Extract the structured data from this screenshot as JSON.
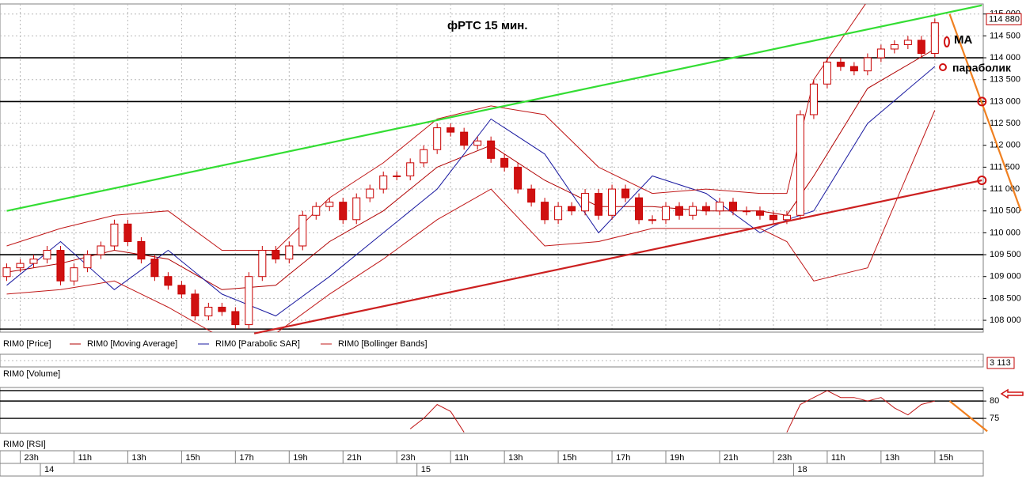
{
  "chart_data": [
    {
      "type": "candlestick",
      "title": "фРТС    15 мин.",
      "price_label": "RIM0 [Price]",
      "xlim": [
        -0.5,
        72.6
      ],
      "ylim": [
        107730,
        115230
      ],
      "yticks": [
        {
          "value": 108000,
          "label": "108 000"
        },
        {
          "value": 108500,
          "label": "108 500"
        },
        {
          "value": 109000,
          "label": "109 000"
        },
        {
          "value": 109500,
          "label": "109 500"
        },
        {
          "value": 110000,
          "label": "110 000"
        },
        {
          "value": 110500,
          "label": "110 500"
        },
        {
          "value": 111000,
          "label": "111 000"
        },
        {
          "value": 111500,
          "label": "111 500"
        },
        {
          "value": 112000,
          "label": "112 000"
        },
        {
          "value": 112500,
          "label": "112 500"
        },
        {
          "value": 113000,
          "label": "113 000"
        },
        {
          "value": 113500,
          "label": "113 500"
        },
        {
          "value": 114000,
          "label": "114 000"
        },
        {
          "value": 114500,
          "label": "114 500"
        },
        {
          "value": 115000,
          "label": "115 000"
        }
      ],
      "xticks": [
        {
          "value": 1,
          "label": "23h"
        },
        {
          "value": 5,
          "label": "11h"
        },
        {
          "value": 9,
          "label": "13h"
        },
        {
          "value": 13,
          "label": "15h"
        },
        {
          "value": 17,
          "label": "17h"
        },
        {
          "value": 21,
          "label": "19h"
        },
        {
          "value": 25,
          "label": "21h"
        },
        {
          "value": 29,
          "label": "23h"
        },
        {
          "value": 33,
          "label": "11h"
        },
        {
          "value": 37,
          "label": "13h"
        },
        {
          "value": 41,
          "label": "15h"
        },
        {
          "value": 45,
          "label": "17h"
        },
        {
          "value": 49,
          "label": "19h"
        },
        {
          "value": 53,
          "label": "21h"
        },
        {
          "value": 57,
          "label": "23h"
        },
        {
          "value": 61,
          "label": "11h"
        },
        {
          "value": 65,
          "label": "13h"
        },
        {
          "value": 69,
          "label": "15h"
        }
      ],
      "day_ticks": [
        {
          "value": 2.5,
          "label": "14"
        },
        {
          "value": 30.5,
          "label": "15"
        },
        {
          "value": 58.5,
          "label": "18"
        }
      ],
      "grid": true,
      "x": [
        0,
        1,
        2,
        3,
        4,
        5,
        6,
        7,
        8,
        9,
        10,
        11,
        12,
        13,
        14,
        15,
        16,
        17,
        18,
        19,
        20,
        21,
        22,
        23,
        24,
        25,
        26,
        27,
        28,
        29,
        30,
        31,
        32,
        33,
        34,
        35,
        36,
        37,
        38,
        39,
        40,
        41,
        42,
        43,
        44,
        45,
        46,
        47,
        48,
        49,
        50,
        51,
        52,
        53,
        54,
        55,
        56,
        57,
        58,
        59,
        60,
        61,
        62,
        63,
        64,
        65,
        66,
        67,
        68,
        69
      ],
      "open": [
        109000,
        109200,
        109300,
        109400,
        109600,
        108900,
        109200,
        109500,
        109700,
        110200,
        109800,
        109400,
        109000,
        108800,
        108600,
        108100,
        108300,
        108200,
        107900,
        109000,
        109600,
        109400,
        109700,
        110400,
        110600,
        110700,
        110300,
        110800,
        111000,
        111300,
        111300,
        111600,
        111900,
        112400,
        112300,
        112000,
        112100,
        111700,
        111500,
        111000,
        110700,
        110300,
        110600,
        110500,
        110900,
        110400,
        111000,
        110800,
        110300,
        110300,
        110600,
        110400,
        110600,
        110500,
        110700,
        110500,
        110500,
        110400,
        110300,
        110400,
        112700,
        113400,
        113900,
        113800,
        113700,
        114000,
        114200,
        114300,
        114400,
        114100
      ],
      "high": [
        109300,
        109400,
        109500,
        109700,
        109700,
        109300,
        109600,
        109800,
        110300,
        110300,
        109900,
        109500,
        109100,
        108900,
        108700,
        108400,
        108400,
        108300,
        109100,
        109700,
        109700,
        109800,
        110500,
        110700,
        110800,
        110800,
        110900,
        111100,
        111400,
        111400,
        111700,
        112000,
        112500,
        112500,
        112400,
        112200,
        112200,
        111800,
        111600,
        111100,
        110800,
        110700,
        110700,
        111000,
        111000,
        111100,
        111100,
        110900,
        110400,
        110700,
        110700,
        110700,
        110700,
        110800,
        110800,
        110600,
        110600,
        110500,
        110500,
        112800,
        113500,
        114000,
        114000,
        113900,
        114100,
        114300,
        114400,
        114500,
        114500,
        114900
      ],
      "low": [
        108900,
        109100,
        109200,
        109300,
        108800,
        108800,
        109100,
        109400,
        109600,
        109700,
        109300,
        108900,
        108700,
        108500,
        108000,
        108000,
        108100,
        107800,
        107800,
        108900,
        109300,
        109300,
        109600,
        110300,
        110500,
        110200,
        110200,
        110700,
        110900,
        111200,
        111200,
        111500,
        111800,
        112200,
        111900,
        111900,
        111600,
        111400,
        110900,
        110600,
        110200,
        110200,
        110400,
        110400,
        110300,
        110300,
        110700,
        110200,
        110200,
        110200,
        110300,
        110300,
        110400,
        110400,
        110400,
        110400,
        110300,
        110200,
        110200,
        110300,
        112600,
        113300,
        113700,
        113600,
        113600,
        113900,
        114100,
        114200,
        114000,
        114000
      ],
      "close": [
        109200,
        109300,
        109400,
        109600,
        108900,
        109200,
        109500,
        109700,
        110200,
        109800,
        109400,
        109000,
        108800,
        108600,
        108100,
        108300,
        108200,
        107900,
        109000,
        109600,
        109400,
        109700,
        110400,
        110600,
        110700,
        110300,
        110800,
        111000,
        111300,
        111300,
        111600,
        111900,
        112400,
        112300,
        112000,
        112100,
        111700,
        111500,
        111000,
        110700,
        110300,
        110600,
        110500,
        110900,
        110400,
        111000,
        110800,
        110300,
        110300,
        110600,
        110400,
        110600,
        110500,
        110700,
        110500,
        110500,
        110400,
        110300,
        110400,
        112700,
        113400,
        113900,
        113800,
        113700,
        114000,
        114200,
        114300,
        114400,
        114100,
        114800
      ],
      "color": "#c80000",
      "up_color": "#ffffff",
      "down_color": "#d01010",
      "last_price": {
        "value": 114880,
        "label": "114 880"
      },
      "series": [
        {
          "name": "RIM0 [Moving Average]",
          "color": "#b00000",
          "x": [
            0,
            4,
            8,
            12,
            16,
            20,
            24,
            28,
            32,
            36,
            40,
            44,
            48,
            52,
            56,
            58,
            60,
            64,
            69
          ],
          "values": [
            109100,
            109300,
            109600,
            109400,
            108700,
            108800,
            109800,
            110500,
            111500,
            112000,
            111200,
            110600,
            110600,
            110500,
            110500,
            110400,
            111300,
            113300,
            114200
          ]
        },
        {
          "name": "RIM0 [Parabolic SAR]",
          "color": "#1a1aa0",
          "x": [
            0,
            4,
            8,
            12,
            16,
            20,
            24,
            28,
            32,
            36,
            40,
            44,
            48,
            52,
            56,
            58,
            60,
            64,
            69
          ],
          "values": [
            108800,
            109800,
            108700,
            109600,
            108600,
            108100,
            109000,
            110000,
            111000,
            112600,
            111800,
            110000,
            111300,
            110900,
            110000,
            110300,
            110500,
            112500,
            113800
          ]
        },
        {
          "name": "RIM0 [Bollinger Bands]",
          "color": "#c01818",
          "x": [
            0,
            4,
            8,
            12,
            16,
            20,
            24,
            28,
            32,
            36,
            40,
            44,
            48,
            52,
            56,
            58,
            60,
            64,
            69
          ],
          "upper": [
            109700,
            110100,
            110400,
            110500,
            109600,
            109600,
            110800,
            111600,
            112600,
            112900,
            112700,
            111500,
            110900,
            111000,
            110900,
            110900,
            113500,
            115300,
            115400
          ],
          "lower": [
            108600,
            108700,
            108900,
            108300,
            107600,
            107700,
            108600,
            109400,
            110300,
            111000,
            109700,
            109800,
            110100,
            110100,
            110100,
            109800,
            108900,
            109200,
            112800
          ]
        }
      ],
      "levels": [
        114000,
        113000,
        109500,
        107800
      ],
      "level_color": "#000000",
      "trendlines": [
        {
          "color": "#33dd33",
          "x": [
            0,
            72.5
          ],
          "values": [
            110500,
            115200
          ]
        },
        {
          "color": "#cc2020",
          "x": [
            18.4,
            72.5
          ],
          "values": [
            107700,
            111200
          ]
        },
        {
          "color": "#f08020",
          "x": [
            70.1,
            75.4
          ],
          "values": [
            115000,
            110500
          ]
        }
      ],
      "markers": [
        {
          "x": 72.5,
          "value": 113000
        },
        {
          "x": 72.5,
          "value": 111200
        }
      ],
      "annotations": [
        "МА",
        "параболик"
      ]
    },
    {
      "type": "volume",
      "title": "RIM0 [Volume]",
      "values": [
        3113
      ],
      "value_labels": [
        "3 113"
      ]
    },
    {
      "type": "line",
      "title": "RIM0 [RSI]",
      "xlim": [
        -0.5,
        72.6
      ],
      "ylim": [
        70.7,
        83.9
      ],
      "yticks": [
        75,
        80
      ],
      "levels": [
        83,
        80,
        75
      ],
      "color": "#c01818",
      "values": [
        null,
        null,
        null,
        null,
        null,
        null,
        null,
        null,
        null,
        null,
        null,
        null,
        null,
        null,
        null,
        null,
        null,
        null,
        null,
        null,
        null,
        null,
        null,
        null,
        null,
        null,
        null,
        null,
        null,
        null,
        72,
        75,
        79,
        77,
        71,
        null,
        null,
        null,
        null,
        null,
        null,
        null,
        null,
        null,
        null,
        null,
        null,
        null,
        null,
        null,
        null,
        null,
        null,
        null,
        null,
        null,
        null,
        null,
        71,
        79,
        81,
        83,
        81,
        81,
        80,
        81,
        78,
        76,
        79,
        80
      ],
      "trendlines": [
        {
          "color": "#f08020",
          "x": [
            70.1,
            72.9
          ],
          "values": [
            80,
            71.3
          ]
        }
      ]
    }
  ]
}
